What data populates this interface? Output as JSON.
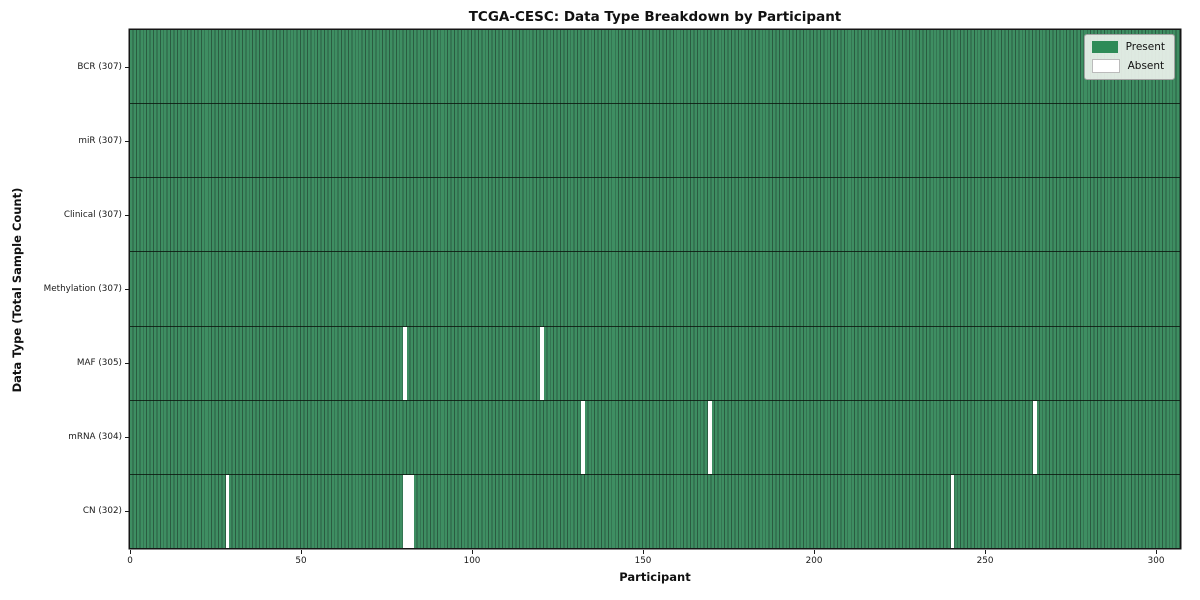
{
  "chart_data": {
    "type": "heatmap",
    "title": "TCGA-CESC: Data Type Breakdown by Participant",
    "xlabel": "Participant",
    "ylabel": "Data Type (Total Sample Count)",
    "n_participants": 307,
    "xlim": [
      0,
      307
    ],
    "x_ticks": [
      0,
      50,
      100,
      150,
      200,
      250,
      300
    ],
    "grid": false,
    "legend_position": "upper right",
    "legend": [
      {
        "label": "Present",
        "color": "#2e8b57"
      },
      {
        "label": "Absent",
        "color": "#ffffff"
      }
    ],
    "colors": {
      "present_fill": "#3e8e62",
      "cell_edge": "#2a5c41",
      "absent": "#ffffff",
      "row_divider": "#0a140c",
      "plot_border": "#151515",
      "legend_bg": "#ecf2ec",
      "absent_swatch_border": "#bbbbbb"
    },
    "rows": [
      {
        "label": "BCR (307)",
        "name": "BCR",
        "total": 307,
        "absent_participants": []
      },
      {
        "label": "miR (307)",
        "name": "miR",
        "total": 307,
        "absent_participants": []
      },
      {
        "label": "Clinical (307)",
        "name": "Clinical",
        "total": 307,
        "absent_participants": []
      },
      {
        "label": "Methylation (307)",
        "name": "Methylation",
        "total": 307,
        "absent_participants": []
      },
      {
        "label": "MAF (305)",
        "name": "MAF",
        "total": 305,
        "absent_participants": [
          80,
          120
        ]
      },
      {
        "label": "mRNA (304)",
        "name": "mRNA",
        "total": 304,
        "absent_participants": [
          132,
          169,
          264
        ]
      },
      {
        "label": "CN (302)",
        "name": "CN",
        "total": 302,
        "absent_participants": [
          28,
          80,
          81,
          82,
          240
        ]
      }
    ]
  }
}
